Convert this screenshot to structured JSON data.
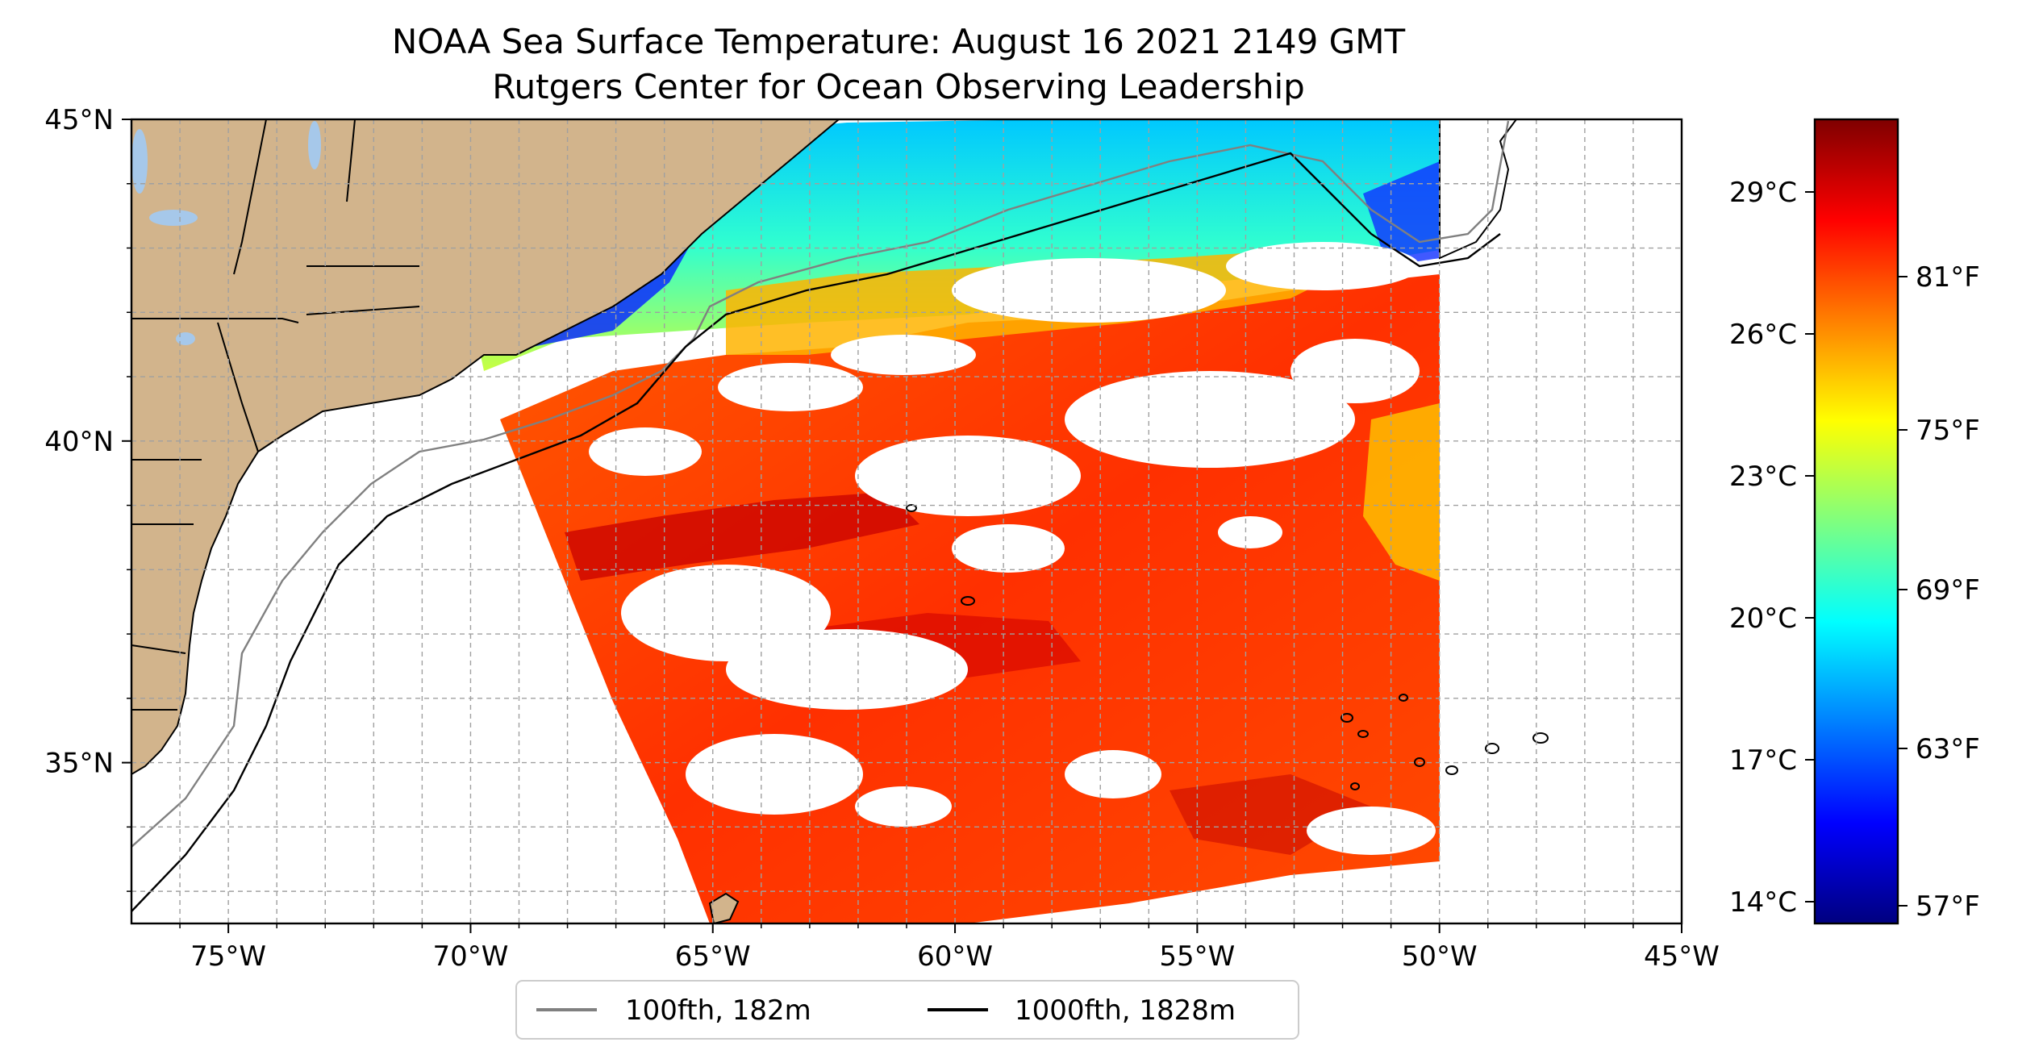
{
  "title": "NOAA Sea Surface Temperature: August 16 2021 2149 GMT",
  "subtitle": "Rutgers Center for Ocean Observing Leadership",
  "map": {
    "lon_range": [
      -77,
      -45
    ],
    "lat_range": [
      32.5,
      45
    ],
    "lon_ticks": [
      "75°W",
      "70°W",
      "65°W",
      "60°W",
      "55°W",
      "50°W",
      "45°W"
    ],
    "lat_ticks": [
      "45°N",
      "40°N",
      "35°N"
    ],
    "land_color": "#d2b48c",
    "water_color": "#a6c8ea",
    "grid": true
  },
  "colorbar": {
    "colormap": "jet",
    "celsius_ticks": [
      "29°C",
      "26°C",
      "23°C",
      "20°C",
      "17°C",
      "14°C"
    ],
    "fahrenheit_ticks": [
      "81°F",
      "75°F",
      "69°F",
      "63°F",
      "57°F"
    ]
  },
  "legend": {
    "placement": "bottom-center",
    "items": [
      {
        "label": "100fth, 182m",
        "color": "#808080"
      },
      {
        "label": "1000fth, 1828m",
        "color": "#000000"
      }
    ]
  }
}
